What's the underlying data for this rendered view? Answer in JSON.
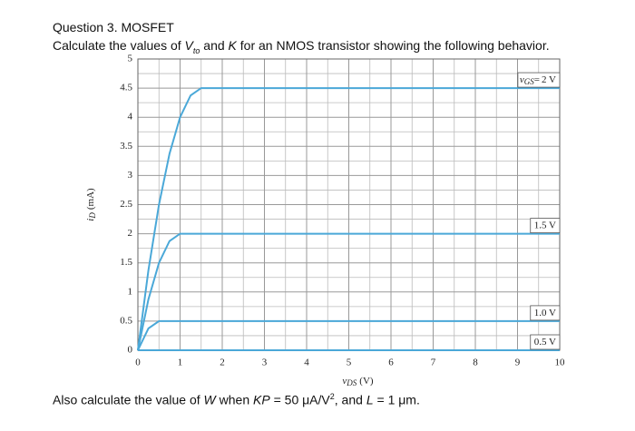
{
  "header": {
    "title": "Question 3. MOSFET",
    "question": [
      "Calculate the values of ",
      "V",
      "to",
      " and ",
      "K",
      " for an NMOS transistor showing the following behavior."
    ]
  },
  "chart_data": {
    "type": "line",
    "x_label": {
      "symbol": "v",
      "subscript": "DS",
      "unit": "(V)"
    },
    "y_label": {
      "symbol": "i",
      "subscript": "D",
      "unit": "(mA)"
    },
    "label_prefix": {
      "symbol": "v",
      "subscript": "GS",
      "sign": "="
    },
    "xlim": [
      0,
      10
    ],
    "ylim": [
      0,
      5
    ],
    "xticks": [
      0,
      1,
      2,
      3,
      4,
      5,
      6,
      7,
      8,
      9,
      10
    ],
    "yticks": [
      0,
      0.5,
      1,
      1.5,
      2,
      2.5,
      3,
      3.5,
      4,
      4.5,
      5
    ],
    "xminor": [
      0.5,
      1.5,
      2.5,
      3.5,
      4.5,
      5.5,
      6.5,
      7.5,
      8.5,
      9.5
    ],
    "yminor": [
      0.25,
      0.75,
      1.25,
      1.75,
      2.25,
      2.75,
      3.25,
      3.75,
      4.25,
      4.75
    ],
    "grid": true,
    "series": [
      {
        "name": "2 V",
        "color": "#4aa8d8",
        "x": [
          0,
          0.25,
          0.5,
          0.75,
          1,
          1.25,
          1.5,
          10
        ],
        "y": [
          0,
          1.375,
          2.5,
          3.375,
          4,
          4.375,
          4.5,
          4.5
        ]
      },
      {
        "name": "1.5 V",
        "color": "#4aa8d8",
        "x": [
          0,
          0.25,
          0.5,
          0.75,
          1,
          10
        ],
        "y": [
          0,
          0.875,
          1.5,
          1.875,
          2,
          2
        ]
      },
      {
        "name": "1.0 V",
        "color": "#4aa8d8",
        "x": [
          0,
          0.25,
          0.5,
          10
        ],
        "y": [
          0,
          0.375,
          0.5,
          0.5
        ]
      },
      {
        "name": "0.5 V",
        "color": "#4aa8d8",
        "x": [
          0,
          10
        ],
        "y": [
          0,
          0
        ]
      }
    ]
  },
  "footer": [
    "Also calculate the value of ",
    "W",
    " when ",
    "KP",
    " = 50 μA/V",
    "2",
    ", and ",
    "L",
    " = 1 μm."
  ]
}
